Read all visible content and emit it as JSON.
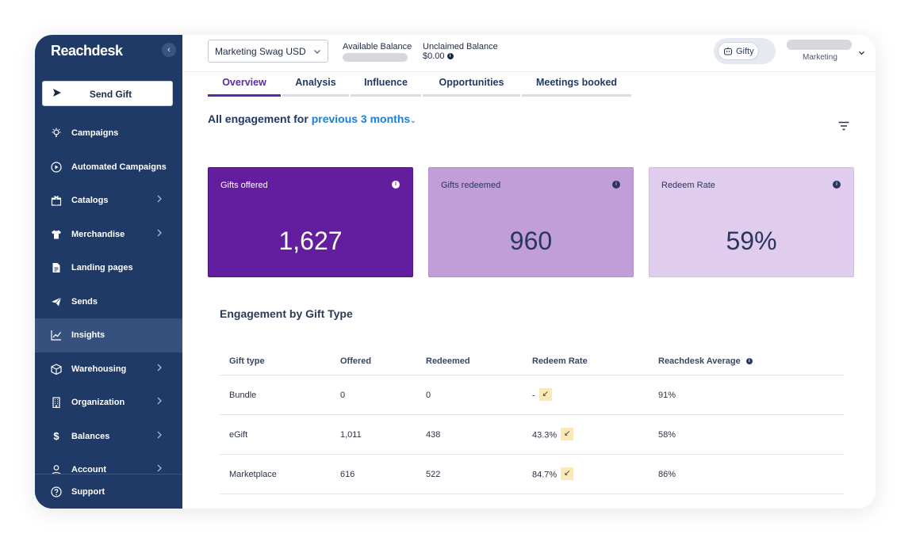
{
  "app": {
    "logo_text": "Reachdesk",
    "brand_color": "#1f3a66",
    "accent_color": "#5b2aa5",
    "link_color": "#1c7fd8"
  },
  "sidebar": {
    "send_gift_label": "Send Gift",
    "items": [
      {
        "label": "Campaigns",
        "icon": "lightbulb-icon",
        "has_chevron": false
      },
      {
        "label": "Automated Campaigns",
        "icon": "play-circle-icon",
        "has_chevron": false
      },
      {
        "label": "Catalogs",
        "icon": "gift-icon",
        "has_chevron": true
      },
      {
        "label": "Merchandise",
        "icon": "tshirt-icon",
        "has_chevron": true
      },
      {
        "label": "Landing pages",
        "icon": "document-icon",
        "has_chevron": false
      },
      {
        "label": "Sends",
        "icon": "paper-plane-icon",
        "has_chevron": false
      },
      {
        "label": "Insights",
        "icon": "chart-line-icon",
        "has_chevron": false,
        "active": true
      },
      {
        "label": "Warehousing",
        "icon": "box-icon",
        "has_chevron": true
      },
      {
        "label": "Organization",
        "icon": "building-icon",
        "has_chevron": true
      },
      {
        "label": "Balances",
        "icon": "dollar-icon",
        "has_chevron": true
      },
      {
        "label": "Account",
        "icon": "user-icon",
        "has_chevron": true
      }
    ],
    "support_label": "Support"
  },
  "topbar": {
    "account_selected": "Marketing Swag USD",
    "available_balance_label": "Available Balance",
    "unclaimed_balance_label": "Unclaimed Balance",
    "unclaimed_balance_value": "$0.00",
    "gifty_label": "Gifty",
    "user_role": "Marketing"
  },
  "tabs": [
    {
      "label": "Overview",
      "active": true
    },
    {
      "label": "Analysis",
      "active": false
    },
    {
      "label": "Influence",
      "active": false
    },
    {
      "label": "Opportunities",
      "active": false
    },
    {
      "label": "Meetings booked",
      "active": false
    }
  ],
  "engagement": {
    "title_prefix": "All engagement for",
    "period": "previous 3 months"
  },
  "stats": [
    {
      "label": "Gifts offered",
      "value": "1,627"
    },
    {
      "label": "Gifts redeemed",
      "value": "960"
    },
    {
      "label": "Redeem Rate",
      "value": "59%"
    }
  ],
  "gift_table": {
    "title": "Engagement by Gift Type",
    "headers": [
      "Gift type",
      "Offered",
      "Redeemed",
      "Redeem Rate",
      "Reachdesk Average"
    ],
    "rows": [
      {
        "gift_type": "Bundle",
        "offered": "0",
        "redeemed": "0",
        "redeem_rate": "-",
        "average": "91%"
      },
      {
        "gift_type": "eGift",
        "offered": "1,011",
        "redeemed": "438",
        "redeem_rate": "43.3%",
        "average": "58%"
      },
      {
        "gift_type": "Marketplace",
        "offered": "616",
        "redeemed": "522",
        "redeem_rate": "84.7%",
        "average": "86%"
      }
    ]
  }
}
